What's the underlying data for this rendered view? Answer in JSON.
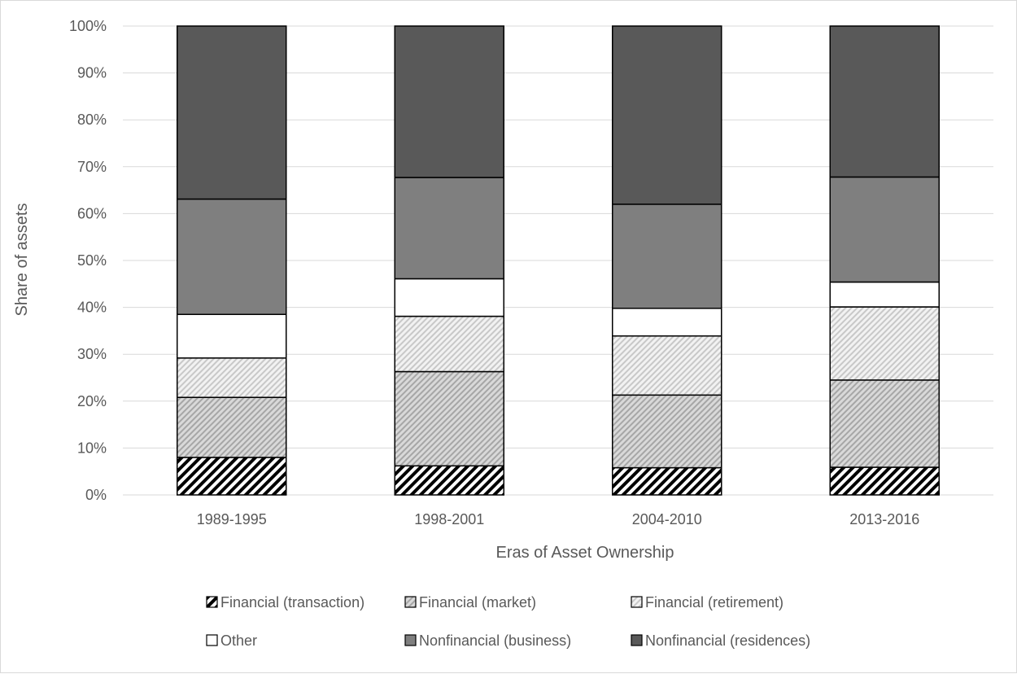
{
  "chart_data": {
    "type": "bar",
    "stacked": true,
    "percent": true,
    "categories": [
      "1989-1995",
      "1998-2001",
      "2004-2010",
      "2013-2016"
    ],
    "series": [
      {
        "name": "Financial (transaction)",
        "pattern": "dense-diagonal-black",
        "values": [
          8.0,
          6.2,
          5.8,
          5.9
        ]
      },
      {
        "name": "Financial (market)",
        "pattern": "diagonal-gray",
        "values": [
          12.8,
          20.1,
          15.5,
          18.6
        ]
      },
      {
        "name": "Financial (retirement)",
        "pattern": "light-diagonal-gray",
        "values": [
          8.4,
          11.8,
          12.6,
          15.6
        ]
      },
      {
        "name": "Other",
        "color": "#ffffff",
        "values": [
          9.3,
          8.0,
          5.9,
          5.3
        ]
      },
      {
        "name": "Nonfinancial (business)",
        "color": "#7f7f7f",
        "values": [
          24.6,
          21.6,
          22.2,
          22.4
        ]
      },
      {
        "name": "Nonfinancial (residences)",
        "color": "#595959",
        "values": [
          36.9,
          32.3,
          38.0,
          32.2
        ]
      }
    ],
    "xlabel": "Eras of Asset Ownership",
    "ylabel": "Share of assets",
    "ylim": [
      0,
      100
    ],
    "yticks": [
      "0%",
      "10%",
      "20%",
      "30%",
      "40%",
      "50%",
      "60%",
      "70%",
      "80%",
      "90%",
      "100%"
    ],
    "grid": true,
    "legend_position": "bottom"
  }
}
